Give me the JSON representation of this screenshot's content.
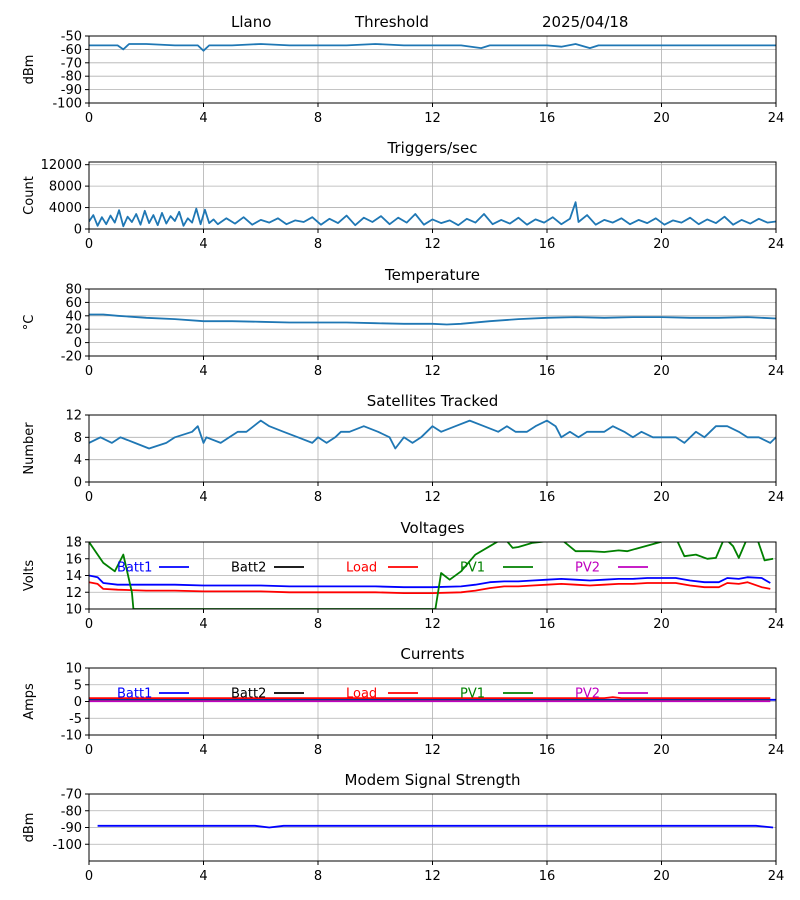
{
  "header": {
    "site": "Llano",
    "mode": "Threshold",
    "date": "2025/04/18"
  },
  "chart_data": [
    {
      "type": "line",
      "title": "",
      "ylabel": "dBm",
      "xlim": [
        0,
        24
      ],
      "ylim": [
        -100,
        -50
      ],
      "xticks": [
        0,
        4,
        8,
        12,
        16,
        20,
        24
      ],
      "yticks": [
        -50,
        -60,
        -70,
        -80,
        -90,
        -100
      ],
      "grid": true,
      "series": [
        {
          "color": "#1f77b4",
          "x": [
            0,
            1.0,
            1.2,
            1.4,
            2,
            3,
            3.8,
            4.0,
            4.2,
            5,
            6,
            7,
            8,
            9,
            10,
            11,
            12,
            13,
            13.7,
            14,
            15,
            16,
            16.5,
            17,
            17.5,
            17.8,
            18,
            19,
            20,
            21,
            22,
            23,
            24
          ],
          "y": [
            -57,
            -57,
            -60,
            -56,
            -56,
            -57,
            -57,
            -61,
            -57,
            -57,
            -56,
            -57,
            -57,
            -57,
            -56,
            -57,
            -57,
            -57,
            -59,
            -57,
            -57,
            -57,
            -58,
            -56,
            -59,
            -57,
            -57,
            -57,
            -57,
            -57,
            -57,
            -57,
            -57
          ]
        }
      ]
    },
    {
      "type": "line",
      "title": "Triggers/sec",
      "ylabel": "Count",
      "xlim": [
        0,
        24
      ],
      "ylim": [
        0,
        12500
      ],
      "xticks": [
        0,
        4,
        8,
        12,
        16,
        20,
        24
      ],
      "yticks": [
        0,
        4000,
        8000,
        12000
      ],
      "grid": true,
      "series": [
        {
          "color": "#1f77b4",
          "x": [
            0,
            0.15,
            0.3,
            0.45,
            0.6,
            0.75,
            0.9,
            1.05,
            1.2,
            1.35,
            1.5,
            1.65,
            1.8,
            1.95,
            2.1,
            2.25,
            2.4,
            2.55,
            2.7,
            2.85,
            3.0,
            3.15,
            3.3,
            3.45,
            3.6,
            3.75,
            3.9,
            4.05,
            4.2,
            4.35,
            4.5,
            4.8,
            5.1,
            5.4,
            5.7,
            6.0,
            6.3,
            6.6,
            6.9,
            7.2,
            7.5,
            7.8,
            8.1,
            8.4,
            8.7,
            9.0,
            9.3,
            9.6,
            9.9,
            10.2,
            10.5,
            10.8,
            11.1,
            11.4,
            11.7,
            12.0,
            12.3,
            12.6,
            12.9,
            13.2,
            13.5,
            13.8,
            14.1,
            14.4,
            14.7,
            15.0,
            15.3,
            15.6,
            15.9,
            16.2,
            16.5,
            16.8,
            17.0,
            17.1,
            17.4,
            17.7,
            18.0,
            18.3,
            18.6,
            18.9,
            19.2,
            19.5,
            19.8,
            20.1,
            20.4,
            20.7,
            21.0,
            21.3,
            21.6,
            21.9,
            22.2,
            22.5,
            22.8,
            23.1,
            23.4,
            23.7,
            24.0
          ],
          "y": [
            1400,
            2600,
            600,
            2200,
            900,
            2500,
            1200,
            3500,
            500,
            2300,
            1300,
            2800,
            800,
            3400,
            1100,
            2600,
            700,
            3000,
            1000,
            2400,
            1500,
            3200,
            600,
            2000,
            1200,
            3800,
            900,
            3600,
            1100,
            1800,
            900,
            2000,
            1000,
            2200,
            800,
            1700,
            1200,
            2000,
            900,
            1600,
            1300,
            2200,
            800,
            1900,
            1100,
            2500,
            700,
            2100,
            1300,
            2400,
            900,
            2100,
            1200,
            2800,
            800,
            1800,
            1100,
            1600,
            700,
            1900,
            1200,
            2800,
            900,
            1700,
            1000,
            2100,
            800,
            1800,
            1200,
            2200,
            900,
            1900,
            5000,
            1300,
            2600,
            800,
            1700,
            1200,
            2000,
            900,
            1700,
            1100,
            2000,
            800,
            1600,
            1200,
            2100,
            900,
            1800,
            1100,
            2300,
            800,
            1700,
            1000,
            1900,
            1200,
            1400
          ]
        }
      ]
    },
    {
      "type": "line",
      "title": "Temperature",
      "ylabel": "°C",
      "xlim": [
        0,
        24
      ],
      "ylim": [
        -20,
        80
      ],
      "xticks": [
        0,
        4,
        8,
        12,
        16,
        20,
        24
      ],
      "yticks": [
        80,
        60,
        40,
        20,
        0,
        -20
      ],
      "grid": true,
      "series": [
        {
          "color": "#1f77b4",
          "x": [
            0,
            0.5,
            1,
            2,
            3,
            4,
            5,
            6,
            7,
            8,
            9,
            10,
            11,
            12,
            12.5,
            13,
            14,
            15,
            16,
            17,
            18,
            19,
            20,
            21,
            22,
            23,
            24
          ],
          "y": [
            42,
            42,
            40,
            37,
            35,
            32,
            32,
            31,
            30,
            30,
            30,
            29,
            28,
            28,
            27,
            28,
            32,
            35,
            37,
            38,
            37,
            38,
            38,
            37,
            37,
            38,
            36
          ]
        }
      ]
    },
    {
      "type": "line",
      "title": "Satellites Tracked",
      "ylabel": "Number",
      "xlim": [
        0,
        24
      ],
      "ylim": [
        0,
        12
      ],
      "xticks": [
        0,
        4,
        8,
        12,
        16,
        20,
        24
      ],
      "yticks": [
        12,
        8,
        4,
        0
      ],
      "grid": true,
      "series": [
        {
          "color": "#1f77b4",
          "x": [
            0,
            0.4,
            0.8,
            1.1,
            1.6,
            2.1,
            2.7,
            3.0,
            3.6,
            3.8,
            4.0,
            4.1,
            4.6,
            4.9,
            5.2,
            5.5,
            6.0,
            6.3,
            6.8,
            7.3,
            7.8,
            8.0,
            8.3,
            8.6,
            8.8,
            9.1,
            9.6,
            10.1,
            10.5,
            10.7,
            11.0,
            11.3,
            11.6,
            12.0,
            12.3,
            12.8,
            13.3,
            13.8,
            14.3,
            14.6,
            14.9,
            15.3,
            15.6,
            16.0,
            16.3,
            16.5,
            16.8,
            17.1,
            17.4,
            17.7,
            18.0,
            18.3,
            18.7,
            19.0,
            19.3,
            19.7,
            20.0,
            20.5,
            20.8,
            21.2,
            21.5,
            21.9,
            22.3,
            22.7,
            23.0,
            23.4,
            23.8,
            24
          ],
          "y": [
            7,
            8,
            7,
            8,
            7,
            6,
            7,
            8,
            9,
            10,
            7,
            8,
            7,
            8,
            9,
            9,
            11,
            10,
            9,
            8,
            7,
            8,
            7,
            8,
            9,
            9,
            10,
            9,
            8,
            6,
            8,
            7,
            8,
            10,
            9,
            10,
            11,
            10,
            9,
            10,
            9,
            9,
            10,
            11,
            10,
            8,
            9,
            8,
            9,
            9,
            9,
            10,
            9,
            8,
            9,
            8,
            8,
            8,
            7,
            9,
            8,
            10,
            10,
            9,
            8,
            8,
            7,
            8
          ]
        }
      ]
    },
    {
      "type": "line",
      "title": "Voltages",
      "ylabel": "Volts",
      "xlim": [
        0,
        24
      ],
      "ylim": [
        10,
        18
      ],
      "xticks": [
        0,
        4,
        8,
        12,
        16,
        20,
        24
      ],
      "yticks": [
        18,
        16,
        14,
        12,
        10
      ],
      "grid": true,
      "legend": "top, inside",
      "series": [
        {
          "name": "Batt1",
          "color": "#0000ff",
          "x": [
            0,
            0.3,
            0.5,
            1,
            2,
            3,
            4,
            5,
            6,
            7,
            8,
            9,
            10,
            11,
            12,
            13,
            13.5,
            14,
            14.5,
            15,
            15.5,
            16,
            16.5,
            17,
            17.5,
            18,
            18.5,
            19,
            19.5,
            20,
            20.5,
            21,
            21.5,
            22,
            22.3,
            22.7,
            23,
            23.5,
            23.8
          ],
          "y": [
            14,
            13.8,
            13.1,
            12.9,
            12.9,
            12.9,
            12.8,
            12.8,
            12.8,
            12.7,
            12.7,
            12.7,
            12.7,
            12.6,
            12.6,
            12.7,
            12.9,
            13.2,
            13.3,
            13.3,
            13.4,
            13.5,
            13.6,
            13.5,
            13.4,
            13.5,
            13.6,
            13.6,
            13.7,
            13.7,
            13.7,
            13.4,
            13.2,
            13.2,
            13.7,
            13.6,
            13.8,
            13.7,
            13.1
          ]
        },
        {
          "name": "Batt2",
          "color": "#000000",
          "x": [],
          "y": []
        },
        {
          "name": "Load",
          "color": "#ff0000",
          "x": [
            0,
            0.3,
            0.5,
            1,
            2,
            3,
            4,
            5,
            6,
            7,
            8,
            9,
            10,
            11,
            12,
            13,
            13.5,
            14,
            14.5,
            15,
            15.5,
            16,
            16.5,
            17,
            17.5,
            18,
            18.5,
            19,
            19.5,
            20,
            20.5,
            21,
            21.5,
            22,
            22.3,
            22.7,
            23,
            23.5,
            23.8
          ],
          "y": [
            13.2,
            13.0,
            12.4,
            12.3,
            12.2,
            12.2,
            12.1,
            12.1,
            12.1,
            12.0,
            12.0,
            12.0,
            12.0,
            11.9,
            11.9,
            12.0,
            12.2,
            12.5,
            12.7,
            12.7,
            12.8,
            12.9,
            13.0,
            12.9,
            12.8,
            12.9,
            13.0,
            13.0,
            13.1,
            13.1,
            13.1,
            12.8,
            12.6,
            12.6,
            13.1,
            13.0,
            13.2,
            12.6,
            12.4
          ]
        },
        {
          "name": "PV1",
          "color": "#008000",
          "x": [
            0,
            0.5,
            0.9,
            1.2,
            1.5,
            1.55,
            12.1,
            12.3,
            12.6,
            13.0,
            13.5,
            14.0,
            14.5,
            14.8,
            15.0,
            15.5,
            16.0,
            16.5,
            17.0,
            17.5,
            18.0,
            18.5,
            18.8,
            20.5,
            20.8,
            21.2,
            21.6,
            21.9,
            22.2,
            22.5,
            22.7,
            23.0,
            23.3,
            23.6,
            23.9
          ],
          "y": [
            18,
            15.5,
            14.5,
            16.5,
            12,
            10,
            10,
            14.3,
            13.5,
            14.5,
            16.5,
            17.5,
            18.5,
            17.3,
            17.4,
            17.9,
            18.1,
            18.3,
            16.9,
            16.9,
            16.8,
            17.0,
            16.9,
            18.5,
            16.3,
            16.5,
            16.0,
            16.1,
            18.5,
            17.5,
            16.1,
            18.5,
            18.8,
            15.8,
            16.0
          ]
        },
        {
          "name": "PV2",
          "color": "#bf00bf",
          "x": [],
          "y": []
        }
      ]
    },
    {
      "type": "line",
      "title": "Currents",
      "ylabel": "Amps",
      "xlim": [
        0,
        24
      ],
      "ylim": [
        -10,
        10
      ],
      "xticks": [
        0,
        4,
        8,
        12,
        16,
        20,
        24
      ],
      "yticks": [
        10,
        5,
        0,
        -5,
        -10
      ],
      "grid": true,
      "legend": "top, inside",
      "series": [
        {
          "name": "Batt1",
          "color": "#0000ff",
          "x": [
            0,
            24
          ],
          "y": [
            0.5,
            0.5
          ]
        },
        {
          "name": "Batt2",
          "color": "#000000",
          "x": [],
          "y": []
        },
        {
          "name": "Load",
          "color": "#ff0000",
          "x": [
            0,
            2,
            4,
            6,
            8,
            10,
            12,
            14,
            16,
            18,
            18.3,
            18.6,
            20,
            22,
            23.8
          ],
          "y": [
            1.0,
            1.0,
            1.0,
            1.0,
            1.0,
            1.0,
            1.0,
            1.0,
            1.0,
            1.0,
            1.3,
            1.0,
            1.0,
            1.0,
            1.0
          ]
        },
        {
          "name": "PV1",
          "color": "#008000",
          "x": [
            0,
            23.8
          ],
          "y": [
            0.3,
            0.3
          ]
        },
        {
          "name": "PV2",
          "color": "#bf00bf",
          "x": [
            0,
            23.8
          ],
          "y": [
            0.1,
            0.1
          ]
        }
      ]
    },
    {
      "type": "line",
      "title": "Modem Signal Strength",
      "ylabel": "dBm",
      "xlim": [
        0,
        24
      ],
      "ylim": [
        -110,
        -70
      ],
      "xticks": [
        0,
        4,
        8,
        12,
        16,
        20,
        24
      ],
      "yticks": [
        -70,
        -80,
        -90,
        -100
      ],
      "grid": true,
      "series": [
        {
          "color": "#0000ff",
          "x": [
            0.3,
            2,
            4,
            5.8,
            6.3,
            6.8,
            8,
            10,
            12,
            14,
            16,
            18,
            20,
            22,
            23.3,
            23.9
          ],
          "y": [
            -89,
            -89,
            -89,
            -89,
            -90,
            -89,
            -89,
            -89,
            -89,
            -89,
            -89,
            -89,
            -89,
            -89,
            -89,
            -90
          ]
        }
      ]
    }
  ]
}
